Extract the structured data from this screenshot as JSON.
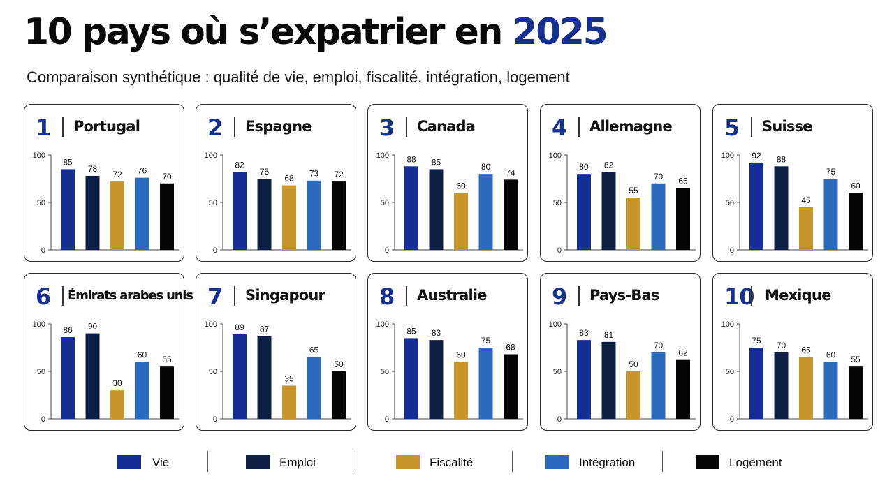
{
  "title": {
    "main": "10 pays où s’expatrier en",
    "year": "2025"
  },
  "subtitle": "Comparaison synthétique : qualité de vie, emploi, fiscalité, intégration, logement",
  "colors": {
    "vie": "#142e96",
    "emploi": "#0d1f45",
    "fiscalite": "#c8962a",
    "integration": "#2b6bbd",
    "logement": "#050505",
    "accent": "#15308f"
  },
  "legend": [
    {
      "key": "vie",
      "label": "Vie"
    },
    {
      "key": "emploi",
      "label": "Emploi"
    },
    {
      "key": "fiscalite",
      "label": "Fiscalité"
    },
    {
      "key": "integration",
      "label": "Intégration"
    },
    {
      "key": "logement",
      "label": "Logement"
    }
  ],
  "chart_data": [
    {
      "type": "bar",
      "rank": "1",
      "title": "Portugal",
      "categories": [
        "Vie",
        "Emploi",
        "Fiscalité",
        "Intégration",
        "Logement"
      ],
      "values": [
        85,
        78,
        72,
        76,
        70
      ],
      "ylim": [
        0,
        100
      ],
      "yticks": [
        0,
        50,
        100
      ]
    },
    {
      "type": "bar",
      "rank": "2",
      "title": "Espagne",
      "categories": [
        "Vie",
        "Emploi",
        "Fiscalité",
        "Intégration",
        "Logement"
      ],
      "values": [
        82,
        75,
        68,
        73,
        72
      ],
      "ylim": [
        0,
        100
      ],
      "yticks": [
        0,
        50,
        100
      ]
    },
    {
      "type": "bar",
      "rank": "3",
      "title": "Canada",
      "categories": [
        "Vie",
        "Emploi",
        "Fiscalité",
        "Intégration",
        "Logement"
      ],
      "values": [
        88,
        85,
        60,
        80,
        74
      ],
      "ylim": [
        0,
        100
      ],
      "yticks": [
        0,
        50,
        100
      ]
    },
    {
      "type": "bar",
      "rank": "4",
      "title": "Allemagne",
      "categories": [
        "Vie",
        "Emploi",
        "Fiscalité",
        "Intégration",
        "Logement"
      ],
      "values": [
        80,
        82,
        55,
        70,
        65
      ],
      "ylim": [
        0,
        100
      ],
      "yticks": [
        0,
        50,
        100
      ]
    },
    {
      "type": "bar",
      "rank": "5",
      "title": "Suisse",
      "categories": [
        "Vie",
        "Emploi",
        "Fiscalité",
        "Intégration",
        "Logement"
      ],
      "values": [
        92,
        88,
        45,
        75,
        60
      ],
      "ylim": [
        0,
        100
      ],
      "yticks": [
        0,
        50,
        100
      ]
    },
    {
      "type": "bar",
      "rank": "6",
      "title": "Émirats arabes unis",
      "categories": [
        "Vie",
        "Emploi",
        "Fiscalité",
        "Intégration",
        "Logement"
      ],
      "values": [
        86,
        90,
        30,
        60,
        55
      ],
      "ylim": [
        0,
        100
      ],
      "yticks": [
        0,
        50,
        100
      ]
    },
    {
      "type": "bar",
      "rank": "7",
      "title": "Singapour",
      "categories": [
        "Vie",
        "Emploi",
        "Fiscalité",
        "Intégration",
        "Logement"
      ],
      "values": [
        89,
        87,
        35,
        65,
        50
      ],
      "ylim": [
        0,
        100
      ],
      "yticks": [
        0,
        50,
        100
      ]
    },
    {
      "type": "bar",
      "rank": "8",
      "title": "Australie",
      "categories": [
        "Vie",
        "Emploi",
        "Fiscalité",
        "Intégration",
        "Logement"
      ],
      "values": [
        85,
        83,
        60,
        75,
        68
      ],
      "ylim": [
        0,
        100
      ],
      "yticks": [
        0,
        50,
        100
      ]
    },
    {
      "type": "bar",
      "rank": "9",
      "title": "Pays-Bas",
      "categories": [
        "Vie",
        "Emploi",
        "Fiscalité",
        "Intégration",
        "Logement"
      ],
      "values": [
        83,
        81,
        50,
        70,
        62
      ],
      "ylim": [
        0,
        100
      ],
      "yticks": [
        0,
        50,
        100
      ]
    },
    {
      "type": "bar",
      "rank": "10",
      "title": "Mexique",
      "categories": [
        "Vie",
        "Emploi",
        "Fiscalité",
        "Intégration",
        "Logement"
      ],
      "values": [
        75,
        70,
        65,
        60,
        55
      ],
      "ylim": [
        0,
        100
      ],
      "yticks": [
        0,
        50,
        100
      ]
    }
  ]
}
